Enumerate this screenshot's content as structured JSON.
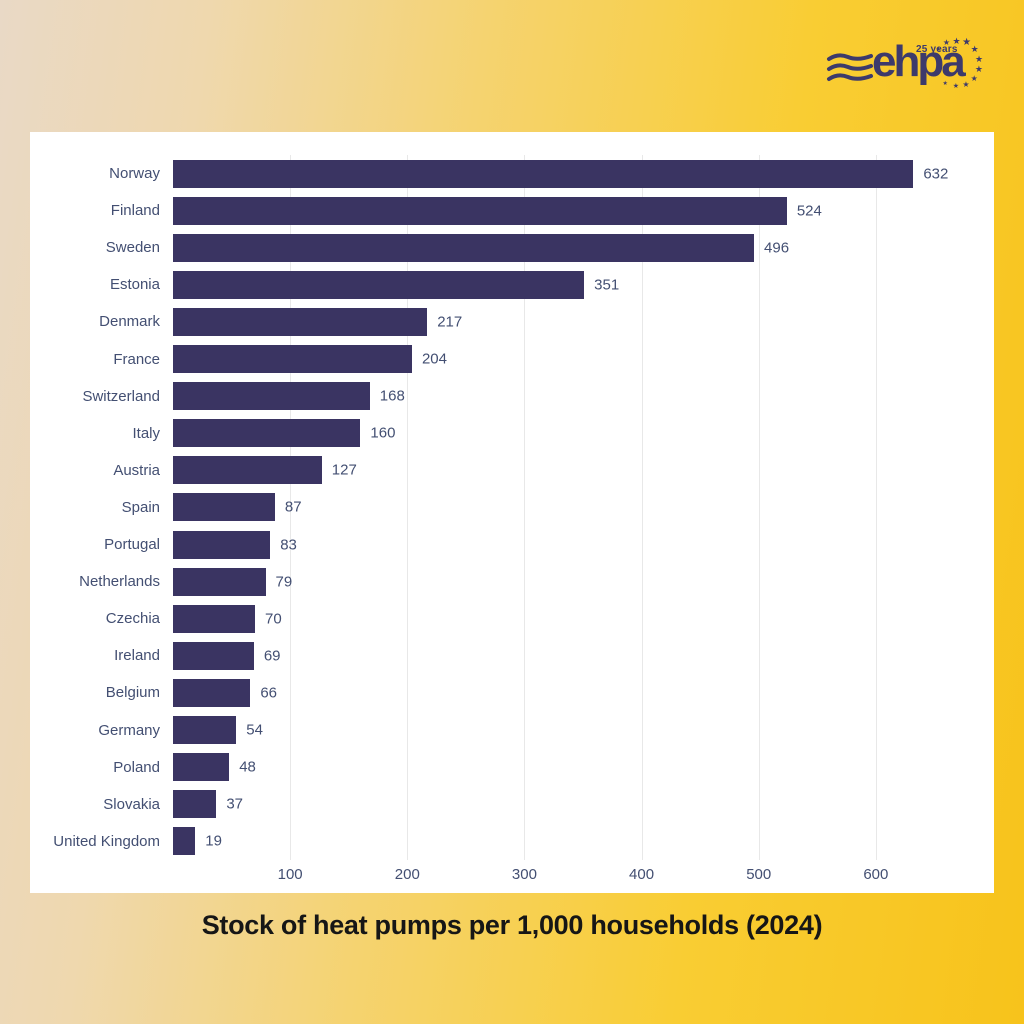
{
  "logo": {
    "brand": "ehpa",
    "badge": "25 years",
    "waves_icon": "triple-wave-icon",
    "stars_icon": "euro-stars-arc-icon",
    "color": "#3d3a6b"
  },
  "title": "Stock of heat pumps per 1,000 households (2024)",
  "colors": {
    "background_left": "#e9d9c6",
    "background_right": "#f7c31b",
    "panel": "#ffffff",
    "bar": "#3a3462",
    "label_text": "#434f72",
    "title_text": "#161616",
    "gridline": "#e8e8e8",
    "logo_navy": "#3d3a6b"
  },
  "chart_data": {
    "type": "bar",
    "orientation": "horizontal",
    "title": "Stock of heat pumps per 1,000 households (2024)",
    "xlabel": "",
    "ylabel": "",
    "categories": [
      "Norway",
      "Finland",
      "Sweden",
      "Estonia",
      "Denmark",
      "France",
      "Switzerland",
      "Italy",
      "Austria",
      "Spain",
      "Portugal",
      "Netherlands",
      "Czechia",
      "Ireland",
      "Belgium",
      "Germany",
      "Poland",
      "Slovakia",
      "United Kingdom"
    ],
    "values": [
      632,
      524,
      496,
      351,
      217,
      204,
      168,
      160,
      127,
      87,
      83,
      79,
      70,
      69,
      66,
      54,
      48,
      37,
      19
    ],
    "xlim": [
      0,
      700
    ],
    "xticks": [
      100,
      200,
      300,
      400,
      500,
      600
    ],
    "grid": "vertical",
    "legend": "none",
    "bar_color": "#3a3462",
    "label_color": "#434f72"
  }
}
